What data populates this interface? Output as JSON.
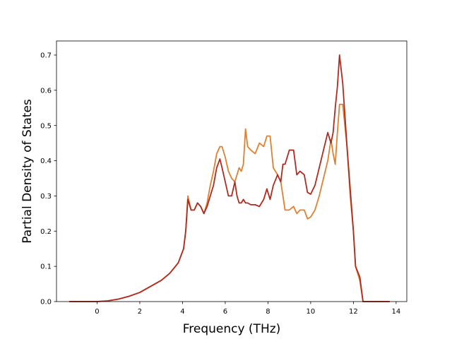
{
  "chart_data": {
    "type": "line",
    "title": "",
    "xlabel": "Frequency (THz)",
    "ylabel": "Partial Density of States",
    "xlim": [
      -1.9,
      14.5
    ],
    "ylim": [
      0.0,
      0.74
    ],
    "xticks": [
      0,
      2,
      4,
      6,
      8,
      10,
      12,
      14
    ],
    "yticks": [
      0.0,
      0.1,
      0.2,
      0.3,
      0.4,
      0.5,
      0.6,
      0.7
    ],
    "xtick_labels": [
      "0",
      "2",
      "4",
      "6",
      "8",
      "10",
      "12",
      "14"
    ],
    "ytick_labels": [
      "0.0",
      "0.1",
      "0.2",
      "0.3",
      "0.4",
      "0.5",
      "0.6",
      "0.7"
    ],
    "grid": false,
    "legend": "none",
    "series": [
      {
        "color": "#e08030",
        "x": [
          -1.3,
          -0.5,
          0.0,
          0.5,
          1.0,
          1.5,
          2.0,
          2.5,
          3.0,
          3.4,
          3.8,
          4.05,
          4.15,
          4.25,
          4.4,
          4.55,
          4.7,
          4.85,
          5.0,
          5.15,
          5.3,
          5.45,
          5.6,
          5.75,
          5.85,
          6.0,
          6.15,
          6.3,
          6.45,
          6.55,
          6.65,
          6.75,
          6.85,
          6.95,
          7.05,
          7.2,
          7.4,
          7.6,
          7.8,
          7.95,
          8.1,
          8.25,
          8.45,
          8.6,
          8.7,
          8.8,
          9.0,
          9.2,
          9.35,
          9.5,
          9.7,
          9.85,
          10.0,
          10.2,
          10.4,
          10.6,
          10.8,
          10.95,
          11.05,
          11.15,
          11.25,
          11.35,
          11.5,
          11.7,
          11.85,
          12.0,
          12.1,
          12.3,
          12.45,
          12.6,
          13.0,
          13.7
        ],
        "values": [
          0.0,
          0.0,
          0.0,
          0.002,
          0.007,
          0.015,
          0.026,
          0.043,
          0.06,
          0.08,
          0.11,
          0.15,
          0.2,
          0.3,
          0.26,
          0.26,
          0.28,
          0.27,
          0.25,
          0.28,
          0.33,
          0.37,
          0.42,
          0.44,
          0.44,
          0.41,
          0.37,
          0.35,
          0.34,
          0.36,
          0.38,
          0.37,
          0.39,
          0.49,
          0.44,
          0.43,
          0.42,
          0.45,
          0.44,
          0.47,
          0.47,
          0.38,
          0.36,
          0.34,
          0.3,
          0.26,
          0.26,
          0.27,
          0.25,
          0.26,
          0.26,
          0.235,
          0.24,
          0.26,
          0.3,
          0.35,
          0.4,
          0.46,
          0.42,
          0.39,
          0.48,
          0.56,
          0.56,
          0.44,
          0.3,
          0.2,
          0.1,
          0.06,
          0.0,
          0.0,
          0.0,
          0.0
        ]
      },
      {
        "color": "#b22a1f",
        "x": [
          -1.3,
          -0.5,
          0.0,
          0.5,
          1.0,
          1.5,
          2.0,
          2.5,
          3.0,
          3.4,
          3.8,
          4.05,
          4.15,
          4.25,
          4.4,
          4.55,
          4.7,
          4.85,
          5.0,
          5.15,
          5.3,
          5.45,
          5.6,
          5.75,
          5.85,
          6.0,
          6.15,
          6.3,
          6.45,
          6.55,
          6.65,
          6.75,
          6.85,
          6.95,
          7.05,
          7.2,
          7.4,
          7.6,
          7.8,
          7.95,
          8.1,
          8.25,
          8.45,
          8.6,
          8.7,
          8.8,
          9.0,
          9.2,
          9.35,
          9.5,
          9.7,
          9.85,
          10.0,
          10.2,
          10.4,
          10.6,
          10.8,
          10.95,
          11.05,
          11.15,
          11.25,
          11.35,
          11.5,
          11.7,
          11.85,
          12.0,
          12.1,
          12.3,
          12.45,
          12.6,
          13.0,
          13.7
        ],
        "values": [
          0.0,
          0.0,
          0.0,
          0.002,
          0.007,
          0.015,
          0.026,
          0.043,
          0.06,
          0.08,
          0.11,
          0.15,
          0.2,
          0.29,
          0.26,
          0.26,
          0.28,
          0.27,
          0.25,
          0.27,
          0.3,
          0.33,
          0.38,
          0.405,
          0.38,
          0.34,
          0.3,
          0.3,
          0.34,
          0.3,
          0.28,
          0.28,
          0.29,
          0.28,
          0.28,
          0.275,
          0.275,
          0.27,
          0.29,
          0.32,
          0.29,
          0.33,
          0.36,
          0.34,
          0.39,
          0.39,
          0.43,
          0.43,
          0.36,
          0.37,
          0.36,
          0.31,
          0.305,
          0.33,
          0.38,
          0.43,
          0.48,
          0.45,
          0.48,
          0.55,
          0.61,
          0.7,
          0.62,
          0.44,
          0.32,
          0.2,
          0.1,
          0.07,
          0.0,
          0.0,
          0.0,
          0.0
        ]
      }
    ]
  }
}
